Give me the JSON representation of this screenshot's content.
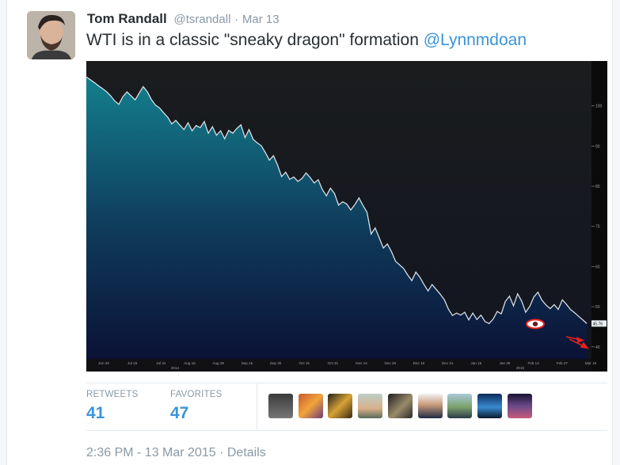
{
  "tweet": {
    "author_name": "Tom Randall",
    "handle": "@tsrandall",
    "separator": "·",
    "date": "Mar 13",
    "text": "WTI is in a classic \"sneaky dragon\" formation ",
    "mention": "@Lynnmdoan",
    "avatar_icon": "user-avatar-photo"
  },
  "stats": {
    "retweets_label": "RETWEETS",
    "retweets_count": "41",
    "favorites_label": "FAVORITES",
    "favorites_count": "47",
    "favoriter_avatars": [
      {
        "name": "favoriter-avatar-1"
      },
      {
        "name": "favoriter-avatar-2"
      },
      {
        "name": "favoriter-avatar-3"
      },
      {
        "name": "favoriter-avatar-4"
      },
      {
        "name": "favoriter-avatar-5"
      },
      {
        "name": "favoriter-avatar-6"
      },
      {
        "name": "favoriter-avatar-7"
      },
      {
        "name": "favoriter-avatar-8"
      },
      {
        "name": "favoriter-avatar-9"
      }
    ]
  },
  "footer": {
    "timestamp": "2:36 PM - 13 Mar 2015",
    "separator": "·",
    "details_label": "Details"
  },
  "colors": {
    "link": "#3b94d9",
    "muted": "#8899a6",
    "chart_bg": "#1a1c1f",
    "chart_fill_top": "#127f8c",
    "chart_fill_bottom": "#0c1436",
    "annotation": "#e8211d"
  },
  "chart_data": {
    "type": "area",
    "title": "",
    "xlabel": "",
    "ylabel": "",
    "ylim": [
      37,
      110
    ],
    "yticks": [
      40,
      50,
      60,
      70,
      80,
      90,
      100
    ],
    "ytick_labels": [
      "40",
      "50",
      "60",
      "70",
      "80",
      "90",
      "100"
    ],
    "last_value_label": "45.76",
    "x_labels": [
      "Jun 30",
      "Jul 15",
      "Jul 31",
      "Aug 15",
      "Aug 29",
      "Sep 15",
      "Sep 30",
      "Oct 15",
      "Oct 31",
      "Nov 14",
      "Nov 28",
      "Dec 15",
      "Dec 31",
      "Jan 15",
      "Jan 30",
      "Feb 13",
      "Feb 27",
      "Mar 16"
    ],
    "year_labels": [
      "2014",
      "2015"
    ],
    "series": [
      {
        "values": [
          107.2,
          106.5,
          105.8,
          105,
          104.3,
          103.5,
          102.5,
          101.2,
          100.4,
          102.3,
          103.5,
          102.5,
          101.5,
          103.2,
          104.8,
          103.5,
          101.6,
          100.2,
          99.5,
          98.3,
          97.2,
          95.5,
          96.4,
          95.2,
          94.1,
          95.8,
          93.8,
          95.1,
          94.6,
          96.1,
          93.2,
          94.8,
          92.7,
          93.8,
          91.8,
          93.9,
          93.2,
          94.4,
          95.3,
          92.1,
          94.1,
          91.7,
          90.8,
          90.1,
          88.4,
          86.5,
          87.6,
          85.3,
          82.4,
          83.5,
          81.7,
          82.3,
          81.2,
          81.9,
          83.3,
          82.2,
          80.8,
          81.6,
          79.2,
          77.6,
          79.5,
          78.2,
          75.3,
          76.1,
          75.6,
          74.1,
          75.4,
          77.1,
          75.2,
          73.5,
          68.1,
          69.6,
          67.1,
          64.6,
          65.6,
          63.7,
          61.3,
          60.4,
          59.5,
          57.9,
          56.5,
          58.6,
          57.3,
          55.5,
          53.9,
          55.5,
          54.3,
          53.1,
          51.7,
          49.4,
          47.8,
          48.4,
          47.9,
          48.6,
          46.7,
          48.4,
          46.8,
          47.9,
          46.3,
          45.8,
          46.9,
          48.8,
          48.2,
          51.3,
          52.6,
          50.2,
          53.2,
          51.4,
          48.6,
          50.1,
          52.4,
          53.6,
          51.6,
          50.4,
          49.5,
          50.5,
          49.3,
          51.7,
          50.6,
          49.3,
          48.5,
          47.6,
          46.7,
          45.8
        ]
      }
    ],
    "annotations": [
      "dragon-eye-icon",
      "arrow-down-right-icon"
    ]
  }
}
